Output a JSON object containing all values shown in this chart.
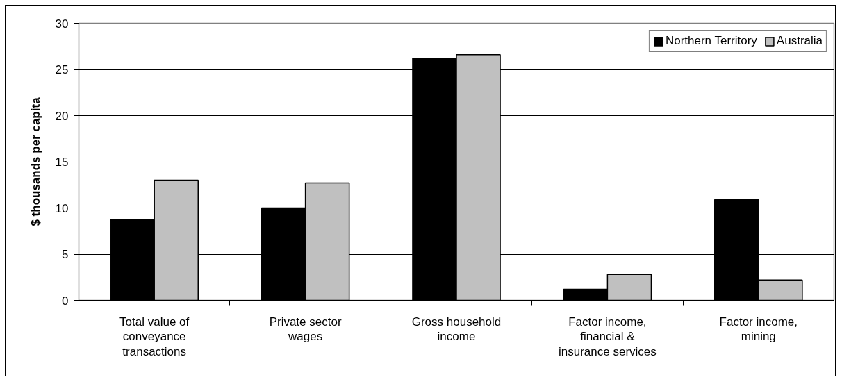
{
  "chart_data": {
    "type": "bar",
    "ylabel": "$ thousands per capita",
    "categories": [
      "Total value of conveyance transactions",
      "Private sector wages",
      "Gross household income",
      "Factor income, financial & insurance services",
      "Factor income, mining"
    ],
    "series": [
      {
        "name": "Northern Territory",
        "color": "#000000",
        "values": [
          8.7,
          10.0,
          26.2,
          1.2,
          10.9
        ]
      },
      {
        "name": "Australia",
        "color": "#c0c0c0",
        "values": [
          13.0,
          12.7,
          26.6,
          2.8,
          2.2
        ]
      }
    ],
    "ylim": [
      0,
      30
    ],
    "yticks": [
      0,
      5,
      10,
      15,
      20,
      25,
      30
    ],
    "grid": "y",
    "legend": "top right"
  }
}
